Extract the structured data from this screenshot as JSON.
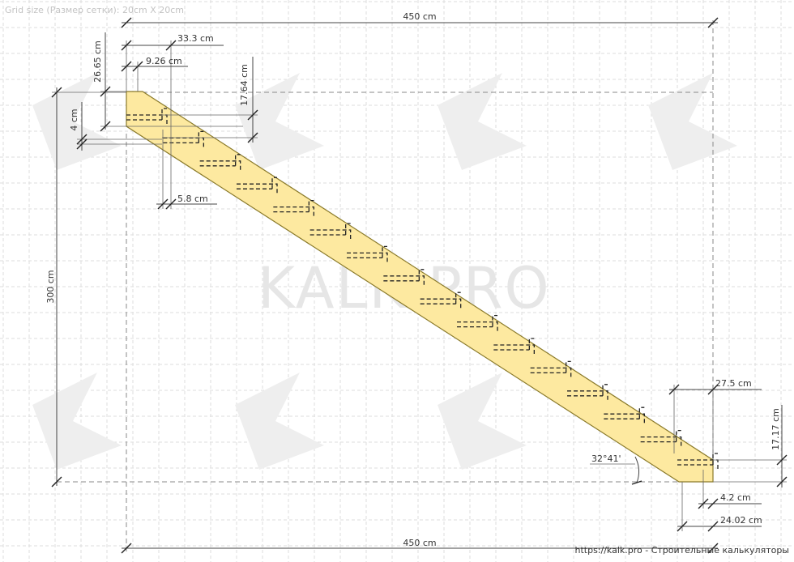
{
  "header": {
    "grid_note": "Grid size (Размер сетки): 20cm X 20cm"
  },
  "watermark": {
    "text": "KALK.PRO"
  },
  "footer": {
    "credit": "https://kalk.pro - Строительные калькуляторы"
  },
  "dimensions": {
    "top_total": "450 cm",
    "bottom_total": "450 cm",
    "height_total": "300 cm",
    "tread_run": "33.3 cm",
    "nosing": "9.26 cm",
    "top_offset": "26.65 cm",
    "riser": "17.64 cm",
    "tread_thickness": "4 cm",
    "step_gap": "5.8 cm",
    "bottom_tread": "27.5 cm",
    "bottom_riser": "17.17 cm",
    "bottom_thickness": "4.2 cm",
    "bottom_offset": "24.02 cm",
    "angle": "32°41'"
  },
  "colors": {
    "stringer_fill": "#fde9a0",
    "stringer_stroke": "#8a7a2a",
    "grid": "#dedede",
    "watermark": "#e6e6e6"
  },
  "stairs": {
    "step_count": 16
  }
}
